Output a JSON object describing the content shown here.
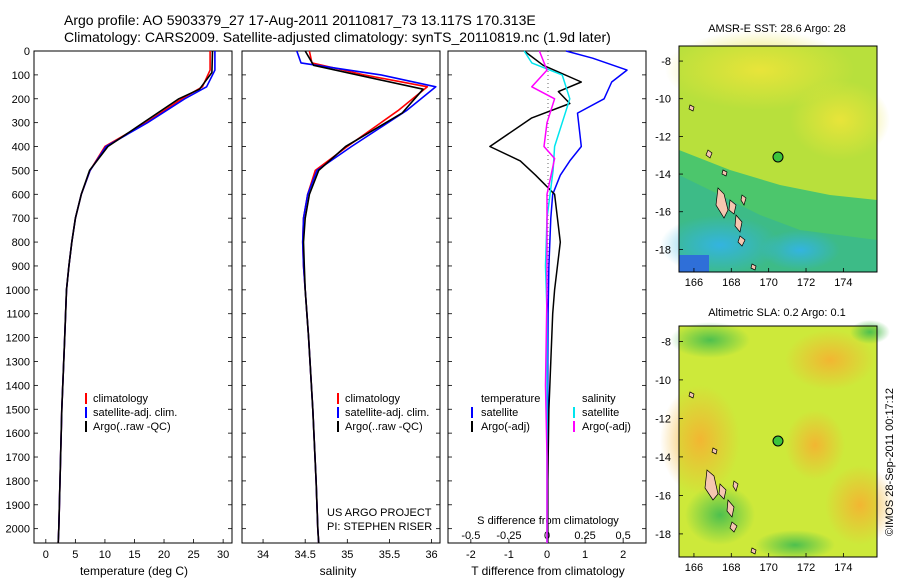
{
  "header": {
    "line1": "Argo profile: AO 5903379_27 17-Aug-2011 20110817_73 13.117S 170.313E",
    "line2": "Climatology: CARS2009. Satellite-adjusted climatology: synTS_20110819.nc (1.9d later)"
  },
  "side_text": "©IMOS 28-Sep-2011 00:17:12",
  "colors": {
    "climatology": "#ff0000",
    "satellite": "#0000ff",
    "argo": "#000000",
    "sal_satellite": "#00e5ee",
    "sal_argo": "#ff00ff"
  },
  "depth_ticks": [
    "0",
    "100",
    "200",
    "300",
    "400",
    "500",
    "600",
    "700",
    "800",
    "900",
    "1000",
    "1100",
    "1200",
    "1300",
    "1400",
    "1500",
    "1600",
    "1700",
    "1800",
    "1900",
    "2000"
  ],
  "temp_panel": {
    "xticks": [
      "0",
      "5",
      "10",
      "15",
      "20",
      "25",
      "30"
    ],
    "xlabel": "temperature (deg C)",
    "legend": [
      "climatology",
      "satellite-adj. clim.",
      "Argo(..raw -QC)"
    ]
  },
  "sal_panel": {
    "xticks": [
      "34",
      "34.5",
      "35",
      "35.5",
      "36"
    ],
    "xlabel": "salinity",
    "legend": [
      "climatology",
      "satellite-adj. clim.",
      "Argo(..raw -QC)"
    ],
    "note1": "US ARGO PROJECT",
    "note2": "PI: STEPHEN RISER"
  },
  "diff_panel": {
    "top_ticks": [
      "-0.5",
      "-0.25",
      "0",
      "0.25",
      "0.5"
    ],
    "top_label": "S difference from climatology",
    "bottom_ticks": [
      "-2",
      "-1",
      "0",
      "1",
      "2"
    ],
    "bottom_label": "T difference from climatology",
    "legend_temp_title": "temperature",
    "legend_sal_title": "salinity",
    "legend_temp": [
      "satellite",
      "Argo(-adj)"
    ],
    "legend_sal": [
      "satellite",
      "Argo(-adj)"
    ]
  },
  "map_sst": {
    "title": "AMSR-E SST: 28.6 Argo: 28",
    "yticks": [
      "-8",
      "-10",
      "-12",
      "-14",
      "-16",
      "-18"
    ],
    "xticks": [
      "166",
      "168",
      "170",
      "172",
      "174"
    ]
  },
  "map_sla": {
    "title": "Altimetric SLA: 0.2 Argo: 0.1",
    "yticks": [
      "-8",
      "-10",
      "-12",
      "-14",
      "-16",
      "-18"
    ],
    "xticks": [
      "166",
      "168",
      "170",
      "172",
      "174"
    ]
  },
  "chart_data": [
    {
      "type": "line",
      "xlabel": "temperature (deg C)",
      "ylabel": "",
      "xlim": [
        -2,
        31.5
      ],
      "ylim": [
        2060,
        0
      ],
      "series": [
        {
          "name": "climatology",
          "x": [
            27.8,
            27.8,
            26.5,
            23,
            17,
            10,
            7.5,
            6,
            5,
            4.4,
            3.9,
            3.5,
            3.2,
            2.7,
            2.4,
            2.2,
            2.1
          ],
          "y": [
            0,
            80,
            150,
            200,
            300,
            400,
            500,
            600,
            700,
            800,
            900,
            1000,
            1200,
            1500,
            1800,
            2000,
            2060
          ]
        },
        {
          "name": "satellite-adj. clim.",
          "x": [
            28.6,
            28.6,
            27.2,
            23.5,
            17.2,
            10.2,
            7.5,
            6,
            5,
            4.4,
            3.9,
            3.5,
            3.2,
            2.7,
            2.4,
            2.2,
            2.1
          ],
          "y": [
            0,
            80,
            150,
            200,
            300,
            400,
            500,
            600,
            700,
            800,
            900,
            1000,
            1200,
            1500,
            1800,
            2000,
            2060
          ]
        },
        {
          "name": "Argo(..raw -QC)",
          "x": [
            28.2,
            28.1,
            26,
            22.5,
            16.5,
            10.5,
            7.4,
            6,
            5,
            4.4,
            3.9,
            3.5,
            3.2,
            2.7,
            2.4,
            2.2,
            2.1
          ],
          "y": [
            0,
            90,
            160,
            200,
            300,
            400,
            500,
            600,
            700,
            800,
            900,
            1000,
            1200,
            1500,
            1800,
            2000,
            2060
          ]
        }
      ]
    },
    {
      "type": "line",
      "xlabel": "salinity",
      "ylabel": "",
      "xlim": [
        33.75,
        36.1
      ],
      "ylim": [
        2060,
        0
      ],
      "series": [
        {
          "name": "climatology",
          "x": [
            34.55,
            34.58,
            35.2,
            35.95,
            35.6,
            35.0,
            34.62,
            34.53,
            34.48,
            34.47,
            34.48,
            34.5,
            34.54,
            34.59,
            34.63,
            34.65,
            34.66
          ],
          "y": [
            0,
            50,
            100,
            150,
            250,
            400,
            500,
            600,
            700,
            800,
            900,
            1000,
            1200,
            1500,
            1800,
            2000,
            2060
          ]
        },
        {
          "name": "satellite-adj. clim.",
          "x": [
            34.4,
            34.45,
            35.4,
            36.05,
            35.7,
            35.05,
            34.64,
            34.53,
            34.48,
            34.47,
            34.48,
            34.5,
            34.54,
            34.59,
            34.63,
            34.65,
            34.66
          ],
          "y": [
            0,
            50,
            100,
            150,
            250,
            400,
            500,
            600,
            700,
            800,
            900,
            1000,
            1200,
            1500,
            1800,
            2000,
            2060
          ]
        },
        {
          "name": "Argo(..raw -QC)",
          "x": [
            34.5,
            34.6,
            35.25,
            35.9,
            35.65,
            34.98,
            34.66,
            34.55,
            34.5,
            34.48,
            34.49,
            34.5,
            34.54,
            34.59,
            34.63,
            34.65,
            34.66
          ],
          "y": [
            0,
            60,
            110,
            160,
            260,
            400,
            500,
            600,
            700,
            800,
            900,
            1000,
            1200,
            1500,
            1800,
            2000,
            2060
          ]
        }
      ]
    },
    {
      "type": "line",
      "xlabel": "T difference from climatology",
      "ylabel": "",
      "xlim": [
        -2.6,
        2.6
      ],
      "ylim": [
        2060,
        0
      ],
      "series": [
        {
          "name": "temperature satellite",
          "x": [
            0.5,
            1.2,
            2.1,
            1.7,
            1.5,
            0.8,
            0.9,
            0.6,
            0.35,
            0.15,
            0.1,
            0.05,
            0.03,
            0.02,
            0.02,
            0.02,
            0.02
          ],
          "y": [
            0,
            30,
            80,
            130,
            200,
            260,
            400,
            460,
            520,
            600,
            700,
            900,
            1100,
            1300,
            1500,
            1800,
            2060
          ]
        },
        {
          "name": "temperature Argo(-adj)",
          "x": [
            -0.6,
            -0.1,
            0.9,
            0.3,
            0.6,
            -0.4,
            -1.5,
            -0.7,
            -0.3,
            0.2,
            0.35,
            0.2,
            0.15,
            0.1,
            0.05,
            0.02,
            0.02
          ],
          "y": [
            0,
            60,
            130,
            170,
            220,
            280,
            400,
            460,
            520,
            600,
            800,
            1000,
            1100,
            1300,
            1500,
            1800,
            2060
          ]
        }
      ]
    },
    {
      "type": "line",
      "xlabel": "S difference from climatology",
      "ylabel": "",
      "xlim": [
        -0.65,
        0.65
      ],
      "ylim": [
        2060,
        0
      ],
      "series": [
        {
          "name": "salinity satellite",
          "x": [
            -0.15,
            -0.1,
            0.1,
            0.15,
            0.1,
            0.05,
            0.04,
            0.0,
            -0.01,
            0.0,
            0.0,
            0.0,
            0.0,
            0.0,
            0.0
          ],
          "y": [
            0,
            50,
            100,
            200,
            300,
            400,
            500,
            700,
            900,
            1100,
            1300,
            1500,
            1700,
            1900,
            2060
          ]
        },
        {
          "name": "salinity Argo(-adj)",
          "x": [
            -0.05,
            0.0,
            -0.1,
            0.05,
            0.0,
            -0.02,
            0.05,
            0.0,
            0.0,
            0.0,
            -0.01,
            0.0,
            0.0
          ],
          "y": [
            0,
            80,
            150,
            200,
            300,
            400,
            450,
            600,
            800,
            1000,
            1400,
            1700,
            2060
          ]
        }
      ]
    }
  ]
}
